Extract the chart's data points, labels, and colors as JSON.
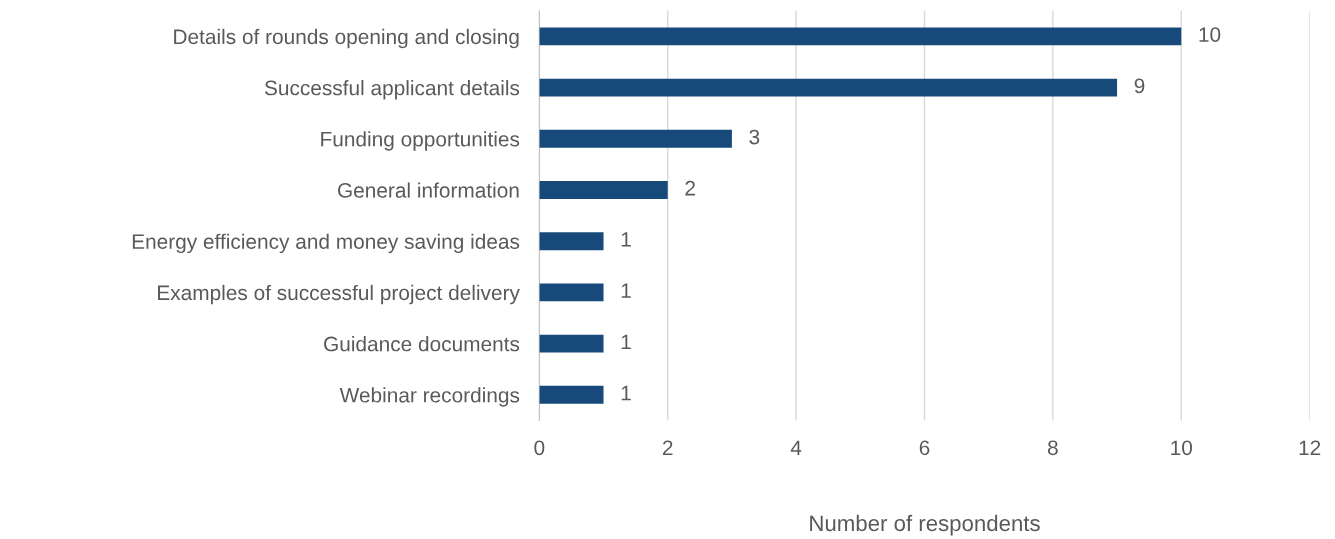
{
  "chart_data": {
    "type": "bar",
    "orientation": "horizontal",
    "xlabel": "Number of respondents",
    "categories": [
      "Details of rounds opening and closing",
      "Successful applicant details",
      "Funding opportunities",
      "General information",
      "Energy efficiency and money saving ideas",
      "Examples of successful project delivery",
      "Guidance documents",
      "Webinar recordings"
    ],
    "values": [
      10,
      9,
      3,
      2,
      1,
      1,
      1,
      1
    ],
    "color": "#17497a",
    "xlim": [
      0,
      12
    ],
    "xticks": [
      0,
      2,
      4,
      6,
      8,
      10,
      12
    ],
    "grid": "x",
    "data_labels": true
  }
}
